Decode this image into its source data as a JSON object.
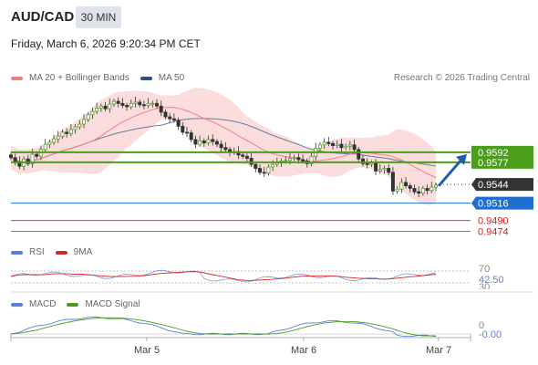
{
  "header": {
    "symbol": "AUD/CAD",
    "timeframe": "30 MIN",
    "datetime": "Friday, March 6, 2026 9:20:34 PM CET",
    "credit": "Research © 2026 Trading Central"
  },
  "colors": {
    "ma20": "#f08080",
    "ma50": "#2f4f7f",
    "bands_fill": "#fcd9d9",
    "resistance": "#4a9e1a",
    "support": "#1f6fd1",
    "target": "#cc1f1f",
    "price_box": "#333333",
    "rsi": "#5b7fd4",
    "rsi_ma": "#d62728",
    "macd": "#5b7fd4",
    "macd_signal": "#4a9e1a"
  },
  "legends": {
    "price": [
      {
        "label": "MA 20 + Bollinger Bands",
        "color": "#f08080"
      },
      {
        "label": "MA 50",
        "color": "#2f4f7f"
      }
    ],
    "rsi": [
      {
        "label": "RSI",
        "color": "#5b7fd4"
      },
      {
        "label": "9MA",
        "color": "#d62728"
      }
    ],
    "macd": [
      {
        "label": "MACD",
        "color": "#5b7fd4"
      },
      {
        "label": "MACD Signal",
        "color": "#4a9e1a"
      }
    ]
  },
  "chart_data": [
    {
      "type": "candlestick",
      "title": "AUD/CAD",
      "x_ticks": [
        "Mar 5",
        "Mar 6",
        "Mar 7"
      ],
      "levels": [
        {
          "value": 0.9592,
          "label": "0.9592",
          "kind": "resistance"
        },
        {
          "value": 0.9577,
          "label": "0.9577",
          "kind": "resistance"
        },
        {
          "value": 0.9544,
          "label": "0.9544",
          "kind": "current"
        },
        {
          "value": 0.9516,
          "label": "0.9516",
          "kind": "support"
        },
        {
          "value": 0.949,
          "label": "0.9490",
          "kind": "target"
        },
        {
          "value": 0.9474,
          "label": "0.9474",
          "kind": "target"
        }
      ],
      "close": [
        0.9584,
        0.9578,
        0.9571,
        0.9582,
        0.9575,
        0.9589,
        0.9586,
        0.9596,
        0.9604,
        0.9607,
        0.9612,
        0.9616,
        0.9622,
        0.962,
        0.9626,
        0.963,
        0.9634,
        0.9641,
        0.9648,
        0.9653,
        0.9658,
        0.9661,
        0.9657,
        0.9664,
        0.9668,
        0.9665,
        0.9662,
        0.966,
        0.9665,
        0.9667,
        0.9663,
        0.9662,
        0.9665,
        0.9665,
        0.9661,
        0.9652,
        0.9645,
        0.9642,
        0.964,
        0.9631,
        0.9622,
        0.9621,
        0.9611,
        0.9604,
        0.9609,
        0.9606,
        0.9611,
        0.9608,
        0.9604,
        0.9599,
        0.9596,
        0.9592,
        0.9593,
        0.9588,
        0.9586,
        0.9583,
        0.9574,
        0.9568,
        0.9562,
        0.9561,
        0.957,
        0.9574,
        0.9576,
        0.9579,
        0.958,
        0.9583,
        0.9584,
        0.9581,
        0.9579,
        0.9575,
        0.9586,
        0.9598,
        0.9603,
        0.9607,
        0.9605,
        0.9602,
        0.9604,
        0.9599,
        0.9601,
        0.9603,
        0.9596,
        0.9582,
        0.9575,
        0.9574,
        0.9576,
        0.9564,
        0.9566,
        0.9568,
        0.9562,
        0.9534,
        0.9537,
        0.9547,
        0.9542,
        0.9538,
        0.9533,
        0.9531,
        0.9538,
        0.9535,
        0.954,
        0.9543
      ],
      "ma20_last": 0.9556,
      "ma50_last": 0.958
    },
    {
      "type": "line",
      "title": "RSI",
      "series": [
        {
          "name": "RSI"
        },
        {
          "name": "9MA"
        }
      ],
      "levels": [
        {
          "value": 70,
          "label": "70"
        },
        {
          "value": 30,
          "label": "30"
        }
      ],
      "last_value": 42.5,
      "last_value_label": "42.50",
      "ylim": [
        30,
        70
      ]
    },
    {
      "type": "line",
      "title": "MACD",
      "series": [
        {
          "name": "MACD"
        },
        {
          "name": "MACD Signal"
        }
      ],
      "levels": [
        {
          "value": 0,
          "label": "0"
        }
      ],
      "last_value": -0.0,
      "last_value_label": "-0.00"
    }
  ]
}
